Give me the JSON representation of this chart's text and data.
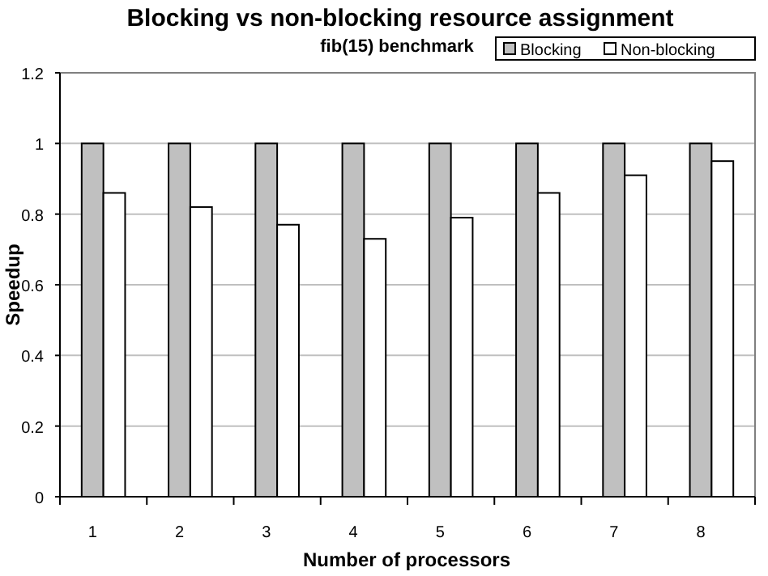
{
  "chart_data": {
    "type": "bar",
    "title": "Blocking vs non-blocking resource assignment",
    "subtitle": "fib(15) benchmark",
    "xlabel": "Number of processors",
    "ylabel": "Speedup",
    "categories": [
      "1",
      "2",
      "3",
      "4",
      "5",
      "6",
      "7",
      "8"
    ],
    "series": [
      {
        "name": "Blocking",
        "color": "#c0c0c0",
        "values": [
          1,
          1,
          1,
          1,
          1,
          1,
          1,
          1
        ]
      },
      {
        "name": "Non-blocking",
        "color": "#ffffff",
        "values": [
          0.86,
          0.82,
          0.77,
          0.73,
          0.79,
          0.86,
          0.91,
          0.95
        ]
      }
    ],
    "ylim": [
      0,
      1.2
    ],
    "yticks": [
      0,
      0.2,
      0.4,
      0.6,
      0.8,
      1,
      1.2
    ],
    "grid": "y",
    "legend": "top right"
  }
}
